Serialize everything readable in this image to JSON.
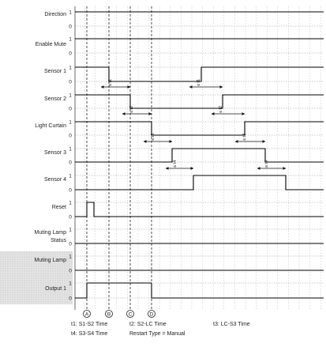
{
  "signals": [
    {
      "label": "Direction",
      "high": "1",
      "low": "0"
    },
    {
      "label": "Enable Mute",
      "high": "1",
      "low": "0"
    },
    {
      "label": "Sensor 1",
      "high": "1",
      "low": "0"
    },
    {
      "label": "Sensor 2",
      "high": "1",
      "low": "0"
    },
    {
      "label": "Light Curtain",
      "high": "1",
      "low": "0"
    },
    {
      "label": "Sensor 3",
      "high": "1",
      "low": "0"
    },
    {
      "label": "Sensor 4",
      "high": "1",
      "low": "0"
    },
    {
      "label": "Reset",
      "high": "1",
      "low": "0"
    },
    {
      "label_lines": [
        "Muting Lamp",
        "Status"
      ],
      "high": "1",
      "low": "0"
    },
    {
      "label": "Muting Lamp",
      "high": "1",
      "low": "0"
    },
    {
      "label": "Output 1",
      "high": "1",
      "low": "0"
    }
  ],
  "markers": [
    "A",
    "B",
    "C",
    "D"
  ],
  "time_labels": {
    "t1_a": "≤ t1",
    "t1_b": "≤ t1",
    "t2_a": "≤ t2",
    "t2_b": "≤ t2",
    "t3_a": "≤ t3",
    "t3_b": "≤ t3",
    "t4_a": "≤ t4",
    "t4_b": "≤ t4"
  },
  "legend": {
    "t1": "t1: S1-S2 Time",
    "t2": "t2: S2-LC Time",
    "t3": "t3: LC-S3 Time",
    "t4": "t4: S3-S4 Time",
    "restart": "Restart Type = Manual"
  }
}
